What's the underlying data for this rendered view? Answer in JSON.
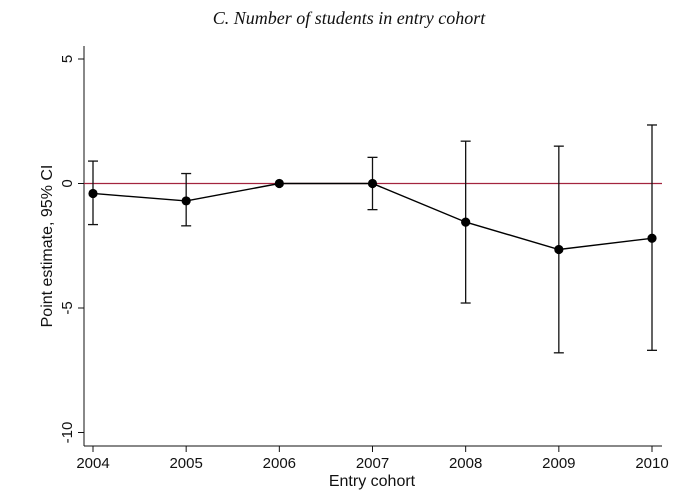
{
  "chart_data": {
    "type": "scatter",
    "title": "C. Number of students in entry cohort",
    "xlabel": "Entry cohort",
    "ylabel": "Point estimate, 95% CI",
    "x_ticks": [
      "2004",
      "2005",
      "2006",
      "2007",
      "2008",
      "2009",
      "2010"
    ],
    "y_ticks": [
      5,
      0,
      -5,
      -10
    ],
    "ylim": [
      -10.5,
      5
    ],
    "xlim": [
      2004,
      2010
    ],
    "grid": false,
    "legend": "none",
    "reference_line": {
      "y": 0,
      "color": "#a3243f"
    },
    "series": [
      {
        "connected": true,
        "color": "#000000",
        "points": [
          {
            "x": 2004,
            "y": -0.4,
            "ci_low": -1.65,
            "ci_high": 0.9
          },
          {
            "x": 2005,
            "y": -0.7,
            "ci_low": -1.7,
            "ci_high": 0.4
          },
          {
            "x": 2006,
            "y": 0.0,
            "ci_low": 0.0,
            "ci_high": 0.0
          },
          {
            "x": 2007,
            "y": 0.0,
            "ci_low": -1.05,
            "ci_high": 1.05
          },
          {
            "x": 2008,
            "y": -1.55,
            "ci_low": -4.8,
            "ci_high": 1.7
          },
          {
            "x": 2009,
            "y": -2.65,
            "ci_low": -6.8,
            "ci_high": 1.5
          },
          {
            "x": 2010,
            "y": -2.2,
            "ci_low": -6.7,
            "ci_high": 2.35
          }
        ]
      }
    ]
  }
}
